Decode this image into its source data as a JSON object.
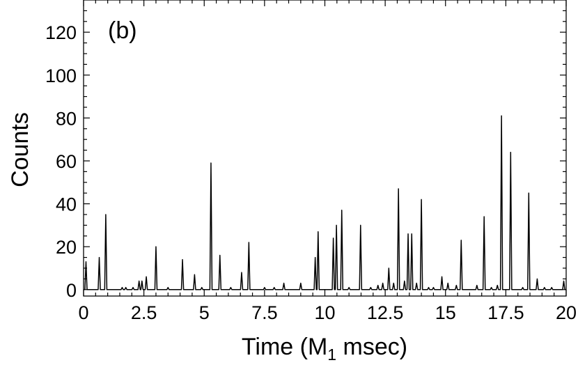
{
  "chart_data": {
    "type": "line",
    "panel_label": "(b)",
    "xlabel": {
      "prefix": "Time (M",
      "subscript": "1",
      "suffix": " msec)"
    },
    "ylabel": "Counts",
    "xlim": [
      0,
      20
    ],
    "ylim": [
      -3,
      135
    ],
    "x_ticks": [
      0,
      2.5,
      5,
      7.5,
      10,
      12.5,
      15,
      17.5,
      20
    ],
    "x_tick_labels": [
      "0",
      "2.5",
      "5",
      "7.5",
      "10",
      "12.5",
      "15",
      "17.5",
      "20"
    ],
    "y_ticks": [
      0,
      20,
      40,
      60,
      80,
      100,
      120
    ],
    "y_tick_labels": [
      "0",
      "20",
      "40",
      "60",
      "80",
      "100",
      "120"
    ],
    "grid": false,
    "series": [
      {
        "color": "#000000",
        "peaks": [
          [
            0.1,
            13
          ],
          [
            0.65,
            15
          ],
          [
            0.92,
            35
          ],
          [
            1.6,
            1
          ],
          [
            1.75,
            1
          ],
          [
            2.05,
            1
          ],
          [
            2.3,
            4
          ],
          [
            2.42,
            4
          ],
          [
            2.6,
            6
          ],
          [
            3.0,
            20
          ],
          [
            3.5,
            1
          ],
          [
            4.1,
            14
          ],
          [
            4.6,
            7
          ],
          [
            4.9,
            1
          ],
          [
            5.28,
            59
          ],
          [
            5.65,
            16
          ],
          [
            6.1,
            1
          ],
          [
            6.55,
            8
          ],
          [
            6.85,
            22
          ],
          [
            7.5,
            1
          ],
          [
            7.9,
            1
          ],
          [
            8.3,
            3
          ],
          [
            9.0,
            3
          ],
          [
            9.6,
            15
          ],
          [
            9.72,
            27
          ],
          [
            10.35,
            24
          ],
          [
            10.48,
            30
          ],
          [
            10.7,
            37
          ],
          [
            11.0,
            1
          ],
          [
            11.48,
            30
          ],
          [
            11.9,
            1
          ],
          [
            12.2,
            2
          ],
          [
            12.4,
            3
          ],
          [
            12.65,
            10
          ],
          [
            12.85,
            3
          ],
          [
            13.05,
            47
          ],
          [
            13.3,
            4
          ],
          [
            13.45,
            26
          ],
          [
            13.6,
            26
          ],
          [
            13.8,
            3
          ],
          [
            14.0,
            42
          ],
          [
            14.3,
            1
          ],
          [
            14.5,
            1
          ],
          [
            14.85,
            6
          ],
          [
            15.1,
            3
          ],
          [
            15.45,
            2
          ],
          [
            15.65,
            23
          ],
          [
            16.3,
            2
          ],
          [
            16.6,
            34
          ],
          [
            16.9,
            1
          ],
          [
            17.15,
            2
          ],
          [
            17.32,
            81
          ],
          [
            17.7,
            64
          ],
          [
            18.2,
            1
          ],
          [
            18.45,
            45
          ],
          [
            18.8,
            5
          ],
          [
            19.1,
            1
          ],
          [
            19.4,
            1
          ],
          [
            19.9,
            4
          ]
        ]
      }
    ]
  }
}
